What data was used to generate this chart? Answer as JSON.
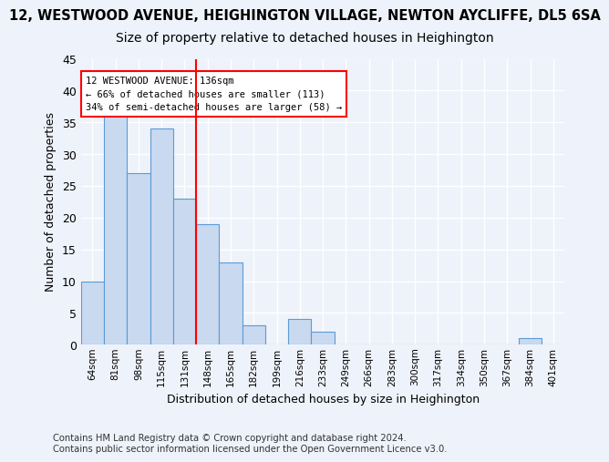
{
  "title_line1": "12, WESTWOOD AVENUE, HEIGHINGTON VILLAGE, NEWTON AYCLIFFE, DL5 6SA",
  "title_line2": "Size of property relative to detached houses in Heighington",
  "xlabel": "Distribution of detached houses by size in Heighington",
  "ylabel": "Number of detached properties",
  "footnote": "Contains HM Land Registry data © Crown copyright and database right 2024.\nContains public sector information licensed under the Open Government Licence v3.0.",
  "bins": [
    "64sqm",
    "81sqm",
    "98sqm",
    "115sqm",
    "131sqm",
    "148sqm",
    "165sqm",
    "182sqm",
    "199sqm",
    "216sqm",
    "233sqm",
    "249sqm",
    "266sqm",
    "283sqm",
    "300sqm",
    "317sqm",
    "334sqm",
    "350sqm",
    "367sqm",
    "384sqm",
    "401sqm"
  ],
  "values": [
    10,
    36,
    27,
    34,
    23,
    19,
    13,
    3,
    0,
    4,
    2,
    0,
    0,
    0,
    0,
    0,
    0,
    0,
    0,
    1,
    0
  ],
  "bar_color": "#c9d9f0",
  "bar_edge_color": "#5b9bd5",
  "bar_edge_width": 0.8,
  "vline_x": 4.5,
  "vline_color": "red",
  "annotation_text": "12 WESTWOOD AVENUE: 136sqm\n← 66% of detached houses are smaller (113)\n34% of semi-detached houses are larger (58) →",
  "annotation_box_color": "white",
  "annotation_box_edge": "red",
  "ylim": [
    0,
    45
  ],
  "yticks": [
    0,
    5,
    10,
    15,
    20,
    25,
    30,
    35,
    40,
    45
  ],
  "bg_color": "#eef2fa",
  "grid_color": "white",
  "title1_fontsize": 10.5,
  "title2_fontsize": 10,
  "footnote_fontsize": 7.2
}
